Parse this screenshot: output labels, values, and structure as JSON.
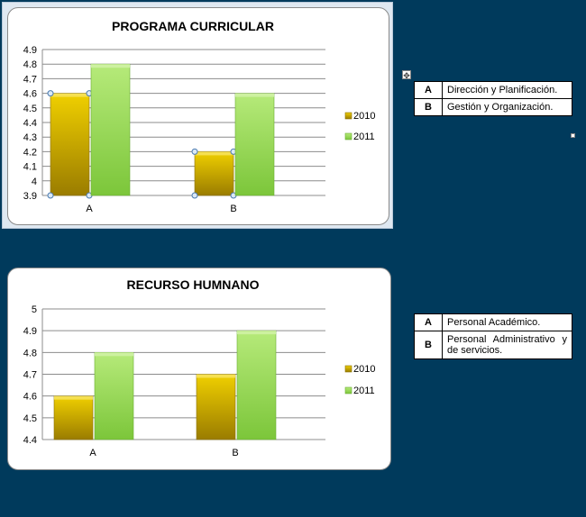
{
  "chart_data": [
    {
      "type": "bar",
      "title": "PROGRAMA CURRICULAR",
      "categories": [
        "A",
        "B"
      ],
      "series": [
        {
          "name": "2010",
          "values": [
            4.6,
            4.2
          ]
        },
        {
          "name": "2011",
          "values": [
            4.8,
            4.6
          ]
        }
      ],
      "yticks": [
        "3.9",
        "4",
        "4.1",
        "4.2",
        "4.3",
        "4.4",
        "4.5",
        "4.6",
        "4.7",
        "4.8",
        "4.9"
      ],
      "ylim": [
        3.9,
        4.9
      ],
      "grid": true,
      "legend_position": "right"
    },
    {
      "type": "bar",
      "title": "RECURSO HUMNANO",
      "categories": [
        "A",
        "B"
      ],
      "series": [
        {
          "name": "2010",
          "values": [
            4.6,
            4.7
          ]
        },
        {
          "name": "2011",
          "values": [
            4.8,
            4.9
          ]
        }
      ],
      "yticks": [
        "4.4",
        "4.5",
        "4.6",
        "4.7",
        "4.8",
        "4.9",
        "5"
      ],
      "ylim": [
        4.4,
        5
      ],
      "grid": true,
      "legend_position": "right"
    }
  ],
  "colors": {
    "series_2010": "#c8a800",
    "series_2011": "#8fd14f",
    "background": "#003a5c"
  },
  "table1": {
    "rows": [
      {
        "key": "A",
        "text": "Dirección y Planificación."
      },
      {
        "key": "B",
        "text": "Gestión y Organización."
      }
    ]
  },
  "table2": {
    "rows": [
      {
        "key": "A",
        "text": "Personal Académico."
      },
      {
        "key": "B",
        "text": "Personal Administrativo y de servicios."
      }
    ]
  },
  "icons": {
    "move_handle": "move-icon",
    "resize_handle": "resize-handle-icon"
  }
}
